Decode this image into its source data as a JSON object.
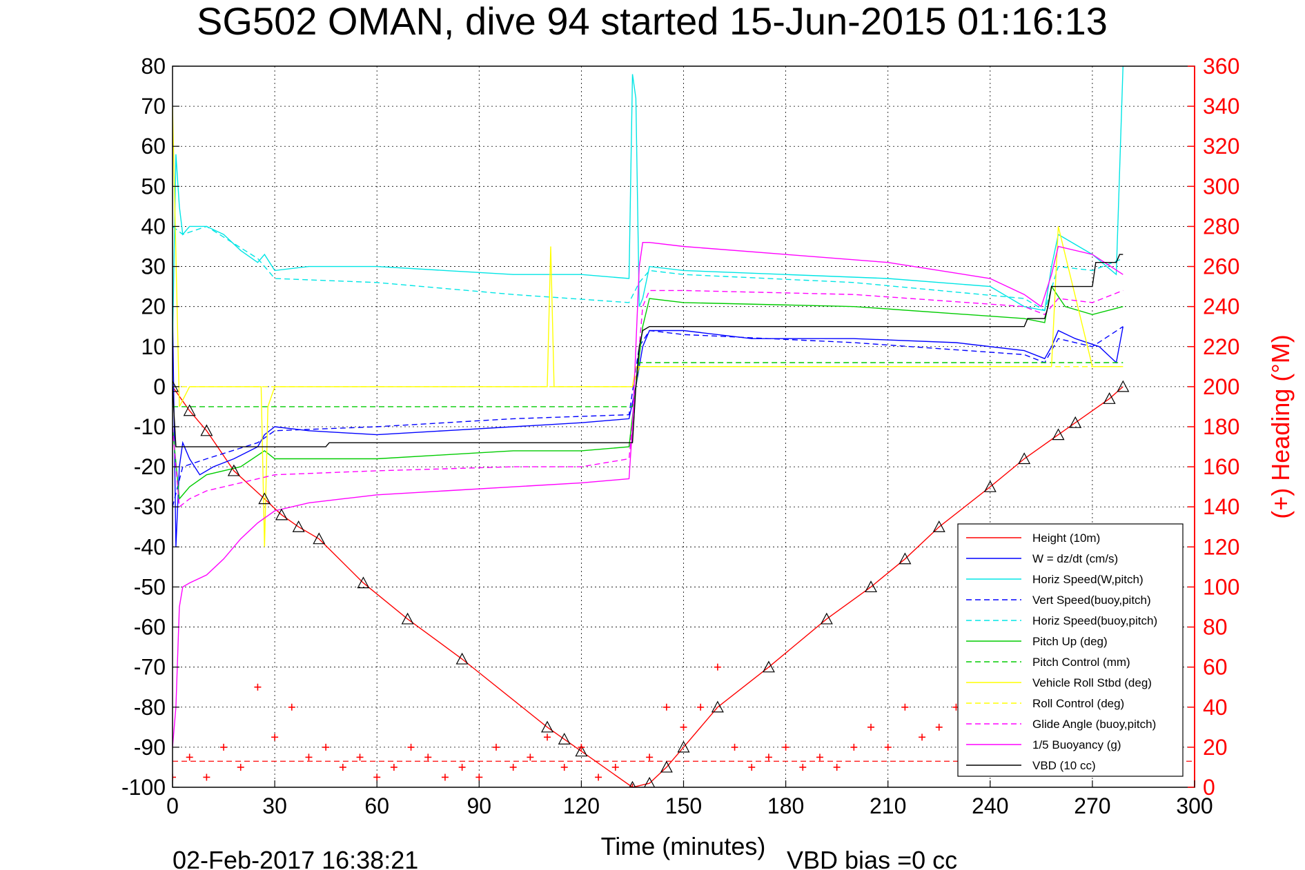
{
  "chart_data": {
    "type": "line",
    "title": "SG502 OMAN, dive 94 started 15-Jun-2015 01:16:13",
    "xlabel": "Time (minutes)",
    "ylabel": "",
    "ylabel_right": "(+) Heading (°M)",
    "xlim": [
      0,
      300
    ],
    "ylim": [
      -100,
      80
    ],
    "ylim_right": [
      0,
      360
    ],
    "x_ticks": [
      0,
      30,
      60,
      90,
      120,
      150,
      180,
      210,
      240,
      270,
      300
    ],
    "y_ticks": [
      80,
      70,
      60,
      50,
      40,
      30,
      20,
      10,
      0,
      -10,
      -20,
      -30,
      -40,
      -50,
      -60,
      -70,
      -80,
      -90,
      -100
    ],
    "y_ticks_right": [
      360,
      340,
      320,
      300,
      280,
      260,
      240,
      220,
      200,
      180,
      160,
      140,
      120,
      100,
      80,
      60,
      40,
      20,
      0
    ],
    "grid": true,
    "legend_position": "bottom-right",
    "footer_date": "02-Feb-2017 16:38:21",
    "footer_bias": "VBD bias =0 cc",
    "series": [
      {
        "name": "Height (10m)",
        "color": "#ff0000",
        "style": "solid",
        "marker": "triangle",
        "x": [
          0,
          5,
          10,
          18,
          27,
          32,
          37,
          43,
          56,
          69,
          85,
          110,
          115,
          120,
          135,
          140,
          145,
          150,
          160,
          175,
          192,
          205,
          215,
          225,
          240,
          250,
          260,
          265,
          275,
          279
        ],
        "y": [
          0,
          -6,
          -11,
          -21,
          -28,
          -32,
          -35,
          -38,
          -49,
          -58,
          -68,
          -85,
          -88,
          -91,
          -100,
          -99,
          -95,
          -90,
          -80,
          -70,
          -58,
          -50,
          -43,
          -35,
          -25,
          -18,
          -12,
          -9,
          -3,
          0
        ]
      },
      {
        "name": "W = dz/dt (cm/s)",
        "color": "#0000ff",
        "style": "solid",
        "x": [
          0,
          1,
          2,
          3,
          5,
          8,
          12,
          18,
          25,
          27,
          30,
          40,
          60,
          80,
          100,
          120,
          134,
          136,
          138,
          140,
          150,
          170,
          200,
          230,
          250,
          256,
          258,
          260,
          265,
          272,
          277,
          279
        ],
        "y": [
          20,
          -40,
          -20,
          -14,
          -18,
          -22,
          -20,
          -18,
          -15,
          -12,
          -10,
          -11,
          -12,
          -11,
          -10,
          -9,
          -8,
          0,
          10,
          14,
          14,
          12,
          12,
          11,
          9,
          7,
          10,
          14,
          12,
          10,
          6,
          15
        ]
      },
      {
        "name": "Horiz Speed(W,pitch)",
        "color": "#00e5e5",
        "style": "solid",
        "x": [
          0,
          1,
          2,
          3,
          5,
          10,
          15,
          20,
          25,
          27,
          30,
          40,
          60,
          80,
          100,
          120,
          134,
          135,
          136,
          137,
          138,
          140,
          150,
          180,
          210,
          240,
          250,
          256,
          258,
          260,
          270,
          277,
          279
        ],
        "y": [
          10,
          58,
          45,
          38,
          40,
          40,
          38,
          34,
          31,
          33,
          29,
          30,
          30,
          29,
          28,
          28,
          27,
          78,
          72,
          20,
          22,
          30,
          29,
          28,
          27,
          25,
          20,
          19,
          30,
          38,
          33,
          28,
          80
        ]
      },
      {
        "name": "Vert Speed(buoy,pitch)",
        "color": "#0000ff",
        "style": "dashed",
        "x": [
          0,
          3,
          10,
          25,
          30,
          60,
          100,
          134,
          137,
          140,
          150,
          200,
          250,
          256,
          260,
          270,
          279
        ],
        "y": [
          -30,
          -20,
          -18,
          -14,
          -11,
          -10,
          -8,
          -7,
          10,
          14,
          13,
          11,
          8,
          6,
          12,
          10,
          15
        ]
      },
      {
        "name": "Horiz Speed(buoy,pitch)",
        "color": "#00e5e5",
        "style": "dashed",
        "x": [
          0,
          3,
          10,
          25,
          30,
          60,
          100,
          134,
          137,
          140,
          150,
          200,
          250,
          256,
          260,
          270,
          279
        ],
        "y": [
          40,
          38,
          40,
          32,
          27,
          26,
          23,
          21,
          26,
          29,
          28,
          26,
          22,
          19,
          30,
          29,
          32
        ]
      },
      {
        "name": "Pitch Up (deg)",
        "color": "#00cc00",
        "style": "solid",
        "x": [
          0,
          2,
          5,
          10,
          20,
          27,
          30,
          40,
          60,
          80,
          100,
          120,
          134,
          136,
          138,
          140,
          150,
          200,
          250,
          256,
          258,
          262,
          270,
          279
        ],
        "y": [
          -10,
          -28,
          -25,
          -22,
          -20,
          -16,
          -18,
          -18,
          -18,
          -17,
          -16,
          -16,
          -15,
          0,
          15,
          22,
          21,
          20,
          17,
          16,
          25,
          20,
          18,
          20
        ]
      },
      {
        "name": "Pitch Control (mm)",
        "color": "#00cc00",
        "style": "dashed",
        "x": [
          0,
          3,
          5,
          130,
          135,
          136,
          137,
          140,
          200,
          256,
          258,
          279
        ],
        "y": [
          -5,
          -5,
          -5,
          -5,
          -5,
          0,
          6,
          6,
          6,
          6,
          6,
          6
        ]
      },
      {
        "name": "Vehicle Roll Stbd (deg)",
        "color": "#ffff00",
        "style": "solid",
        "x": [
          0,
          2,
          5,
          10,
          20,
          26,
          27,
          28,
          30,
          40,
          60,
          80,
          100,
          110,
          111,
          112,
          130,
          135,
          136,
          137,
          138,
          140,
          150,
          200,
          250,
          258,
          260,
          270,
          277,
          279
        ],
        "y": [
          70,
          -5,
          0,
          0,
          0,
          0,
          -40,
          -5,
          0,
          0,
          0,
          0,
          0,
          0,
          35,
          0,
          0,
          0,
          5,
          5,
          5,
          5,
          5,
          5,
          5,
          5,
          40,
          5,
          5,
          5
        ]
      },
      {
        "name": "Roll Control (deg)",
        "color": "#ffff00",
        "style": "dashed",
        "x": [
          0,
          3,
          5,
          130,
          135,
          137,
          140,
          200,
          258,
          279
        ],
        "y": [
          0,
          0,
          0,
          0,
          0,
          5,
          5,
          5,
          5,
          5
        ]
      },
      {
        "name": "Glide Angle (buoy,pitch)",
        "color": "#ff00ff",
        "style": "dashed",
        "x": [
          0,
          2,
          5,
          10,
          20,
          30,
          60,
          100,
          120,
          134,
          136,
          138,
          140,
          150,
          200,
          250,
          256,
          260,
          270,
          279
        ],
        "y": [
          -10,
          -30,
          -28,
          -26,
          -24,
          -22,
          -21,
          -20,
          -20,
          -18,
          0,
          20,
          24,
          24,
          23,
          20,
          18,
          22,
          21,
          24
        ]
      },
      {
        "name": "1/5 Buoyancy (g)",
        "color": "#ff00ff",
        "style": "solid",
        "x": [
          0,
          1,
          2,
          3,
          5,
          10,
          15,
          20,
          25,
          30,
          40,
          50,
          60,
          80,
          100,
          120,
          134,
          135,
          136,
          137,
          138,
          140,
          150,
          180,
          210,
          240,
          250,
          255,
          258,
          260,
          270,
          279
        ],
        "y": [
          -90,
          -80,
          -55,
          -50,
          -49,
          -47,
          -43,
          -38,
          -34,
          -31,
          -29,
          -28,
          -27,
          -26,
          -25,
          -24,
          -23,
          -10,
          10,
          30,
          36,
          36,
          35,
          33,
          31,
          27,
          23,
          20,
          28,
          35,
          33,
          28
        ]
      },
      {
        "name": "VBD (10 cc)",
        "color": "#000000",
        "style": "solid",
        "x": [
          0,
          1,
          2,
          5,
          45,
          46,
          135,
          136,
          137,
          138,
          140,
          250,
          251,
          256,
          257,
          258,
          260,
          270,
          271,
          277,
          278,
          279
        ],
        "y": [
          0,
          -15,
          -15,
          -15,
          -15,
          -14,
          -14,
          0,
          10,
          14,
          15,
          15,
          17,
          17,
          20,
          25,
          25,
          25,
          31,
          31,
          33,
          33
        ]
      },
      {
        "name": "Heading (°M)",
        "color": "#ff0000",
        "style": "markers",
        "axis": "right",
        "x": [
          0,
          5,
          10,
          15,
          20,
          25,
          30,
          35,
          40,
          45,
          50,
          55,
          60,
          65,
          70,
          75,
          80,
          85,
          90,
          95,
          100,
          105,
          110,
          115,
          120,
          125,
          130,
          135,
          140,
          145,
          150,
          155,
          160,
          165,
          170,
          175,
          180,
          185,
          190,
          195,
          200,
          205,
          210,
          215,
          220,
          225,
          230,
          235,
          240,
          245,
          250,
          255,
          260,
          265,
          270,
          275,
          278
        ],
        "y": [
          5,
          15,
          5,
          20,
          10,
          50,
          25,
          40,
          15,
          20,
          10,
          15,
          5,
          10,
          20,
          15,
          5,
          10,
          5,
          20,
          10,
          15,
          25,
          10,
          20,
          5,
          10,
          0,
          15,
          40,
          30,
          40,
          60,
          20,
          10,
          15,
          20,
          10,
          15,
          10,
          20,
          30,
          20,
          40,
          25,
          30,
          40,
          20,
          25,
          30,
          10,
          35,
          20,
          30,
          25,
          40,
          30
        ]
      }
    ],
    "heading_ref_line": {
      "name": "",
      "color": "#ff0000",
      "style": "dashed",
      "y_right": 13
    }
  }
}
